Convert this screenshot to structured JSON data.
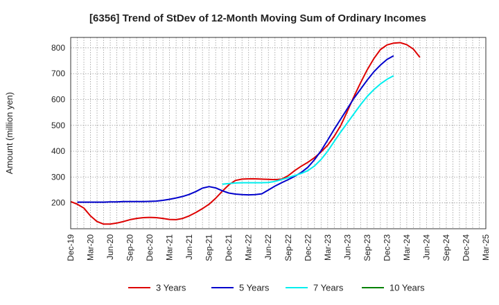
{
  "chart_data": {
    "type": "line",
    "title": "[6356]  Trend of StDev of 12-Month Moving Sum of Ordinary Incomes",
    "xlabel": "",
    "ylabel": "Amount (million yen)",
    "ylim": [
      100,
      840
    ],
    "y_ticks": [
      200,
      300,
      400,
      500,
      600,
      700,
      800
    ],
    "x_tick_labels": [
      "Dec-19",
      "Mar-20",
      "Jun-20",
      "Sep-20",
      "Dec-20",
      "Mar-21",
      "Jun-21",
      "Sep-21",
      "Dec-21",
      "Mar-22",
      "Jun-22",
      "Sep-22",
      "Dec-22",
      "Mar-23",
      "Jun-23",
      "Sep-23",
      "Dec-23",
      "Mar-24",
      "Jun-24",
      "Sep-24",
      "Dec-24",
      "Mar-25"
    ],
    "grid": true,
    "legend_position": "bottom",
    "series": [
      {
        "name": "3 Years",
        "color": "#dd0000",
        "values": [
          205,
          195,
          180,
          150,
          128,
          118,
          118,
          122,
          128,
          135,
          140,
          143,
          144,
          143,
          140,
          136,
          135,
          140,
          150,
          163,
          178,
          195,
          218,
          245,
          270,
          287,
          292,
          293,
          293,
          292,
          291,
          290,
          292,
          305,
          325,
          342,
          357,
          375,
          397,
          423,
          458,
          500,
          555,
          612,
          665,
          715,
          758,
          793,
          811,
          818,
          820,
          812,
          795,
          763
        ]
      },
      {
        "name": "5 Years",
        "color": "#0000cc",
        "values": [
          null,
          203,
          203,
          203,
          203,
          203,
          204,
          204,
          205,
          205,
          205,
          205,
          206,
          207,
          210,
          214,
          219,
          225,
          233,
          244,
          257,
          263,
          258,
          247,
          238,
          234,
          232,
          231,
          232,
          235,
          250,
          265,
          278,
          290,
          303,
          318,
          338,
          367,
          402,
          443,
          485,
          525,
          565,
          605,
          640,
          675,
          707,
          733,
          755,
          769
        ]
      },
      {
        "name": "7 Years",
        "color": "#00eeee",
        "values": [
          null,
          null,
          null,
          null,
          null,
          null,
          null,
          null,
          null,
          null,
          null,
          null,
          null,
          null,
          null,
          null,
          null,
          null,
          null,
          null,
          null,
          null,
          null,
          272,
          275,
          277,
          278,
          278,
          278,
          278,
          279,
          283,
          290,
          298,
          306,
          314,
          325,
          343,
          368,
          400,
          438,
          475,
          510,
          545,
          580,
          612,
          638,
          660,
          678,
          692
        ]
      },
      {
        "name": "10 Years",
        "color": "#008000",
        "values": []
      }
    ]
  }
}
